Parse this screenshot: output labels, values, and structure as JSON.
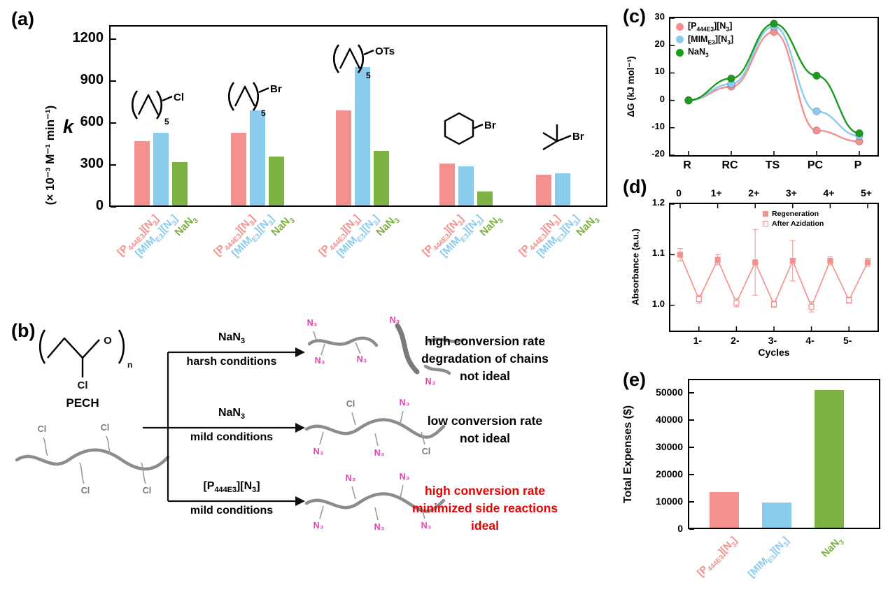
{
  "figure": {
    "panel_labels": {
      "a": "(a)",
      "b": "(b)",
      "c": "(c)",
      "d": "(d)",
      "e": "(e)"
    }
  },
  "colors": {
    "p444": "#F4908D",
    "mim": "#8BCBEE",
    "nan3": "#7CB342",
    "nan3_line": "#1C9C1C",
    "azide_magenta": "#ED3EB4",
    "ideal_red": "#E60000",
    "chain_gray": "#8C8C8C"
  },
  "series_labels_html": [
    "[P<sub>444E3</sub>][N<sub>3</sub>]",
    "[MIM<sub>E3</sub>][N<sub>3</sub>]",
    "NaN<sub>3</sub>"
  ],
  "panel_a": {
    "k_label": "k",
    "units_label": "(× 10⁻³ M⁻¹ min⁻¹)",
    "sub5": "5"
  },
  "chart_data": [
    {
      "id": "panel_a",
      "type": "bar",
      "ylabel": "k (× 10⁻³ M⁻¹ min⁻¹)",
      "ylim": [
        0,
        1300
      ],
      "yticks": [
        0,
        300,
        600,
        900,
        1200
      ],
      "series_names": [
        "[P444E3][N3]",
        "[MIME3][N3]",
        "NaN3"
      ],
      "groups": [
        {
          "substrate": "1-chlorohexane",
          "leaving_group": "Cl",
          "values": [
            460,
            520,
            310
          ]
        },
        {
          "substrate": "1-bromohexane",
          "leaving_group": "Br",
          "values": [
            520,
            680,
            350
          ]
        },
        {
          "substrate": "hexyl tosylate",
          "leaving_group": "OTs",
          "values": [
            680,
            990,
            390
          ]
        },
        {
          "substrate": "bromocyclohexane",
          "leaving_group": "Br",
          "values": [
            300,
            280,
            100
          ]
        },
        {
          "substrate": "tert-butyl bromide",
          "leaving_group": "Br",
          "values": [
            220,
            230,
            null
          ]
        }
      ]
    },
    {
      "id": "panel_c",
      "type": "line",
      "ylabel": "ΔG (kJ mol⁻¹)",
      "categories": [
        "R",
        "RC",
        "TS",
        "PC",
        "P"
      ],
      "ylim": [
        -20,
        30
      ],
      "yticks": [
        -20,
        -10,
        0,
        10,
        20,
        30
      ],
      "legend_position": "top-left",
      "series": [
        {
          "name": "[P444E3][N3]",
          "color_key": "p444",
          "values": [
            0,
            5,
            25,
            -11,
            -15
          ]
        },
        {
          "name": "[MIME3][N3]",
          "color_key": "mim",
          "values": [
            0,
            6,
            27,
            -4,
            -13
          ]
        },
        {
          "name": "NaN3",
          "color_key": "nan3_line",
          "values": [
            0,
            8,
            28,
            9,
            -12
          ]
        }
      ]
    },
    {
      "id": "panel_d",
      "type": "line",
      "ylabel": "Absorbance (a.u.)",
      "xlabel": "Cycles",
      "ylim": [
        0.95,
        1.2
      ],
      "yticks": [
        1.0,
        1.1,
        1.2
      ],
      "top_axis_labels": [
        "0",
        "1+",
        "2+",
        "3+",
        "4+",
        "5+"
      ],
      "bottom_axis_labels": [
        "1-",
        "2-",
        "3-",
        "4-",
        "5-"
      ],
      "legend": [
        "Regeneration",
        "After Azidation"
      ],
      "points": [
        {
          "y": 1.1,
          "err": 0.012,
          "set": "regeneration"
        },
        {
          "y": 1.012,
          "err": 0.008,
          "set": "azidation"
        },
        {
          "y": 1.09,
          "err": 0.01,
          "set": "regeneration"
        },
        {
          "y": 1.005,
          "err": 0.008,
          "set": "azidation"
        },
        {
          "y": 1.085,
          "err": 0.065,
          "set": "regeneration"
        },
        {
          "y": 1.002,
          "err": 0.006,
          "set": "azidation"
        },
        {
          "y": 1.088,
          "err": 0.04,
          "set": "regeneration"
        },
        {
          "y": 0.997,
          "err": 0.01,
          "set": "azidation"
        },
        {
          "y": 1.088,
          "err": 0.008,
          "set": "regeneration"
        },
        {
          "y": 1.01,
          "err": 0.006,
          "set": "azidation"
        },
        {
          "y": 1.085,
          "err": 0.008,
          "set": "regeneration"
        }
      ]
    },
    {
      "id": "panel_e",
      "type": "bar",
      "ylabel": "Total Expenses ($)",
      "ylim": [
        0,
        55000
      ],
      "yticks": [
        0,
        10000,
        20000,
        30000,
        40000,
        50000
      ],
      "categories": [
        "[P444E3][N3]",
        "[MIME3][N3]",
        "NaN3"
      ],
      "values": [
        13000,
        9200,
        50500
      ]
    }
  ],
  "panel_b": {
    "pech": "PECH",
    "cl": "Cl",
    "n3": "N₃",
    "o": "O",
    "n": "n",
    "rows": [
      {
        "reagent_html": "NaN<sub>3</sub>",
        "condition": "harsh conditions",
        "outcome_lines": [
          "high conversion rate",
          "degradation of chains",
          "not ideal"
        ]
      },
      {
        "reagent_html": "NaN<sub>3</sub>",
        "condition": "mild conditions",
        "outcome_lines": [
          "low conversion rate",
          "not ideal"
        ]
      },
      {
        "reagent_html": "[P<sub>444E3</sub>][N<sub>3</sub>]",
        "condition": "mild conditions",
        "outcome_lines": [
          "high conversion rate",
          "minimized side reactions",
          "ideal"
        ]
      }
    ]
  }
}
